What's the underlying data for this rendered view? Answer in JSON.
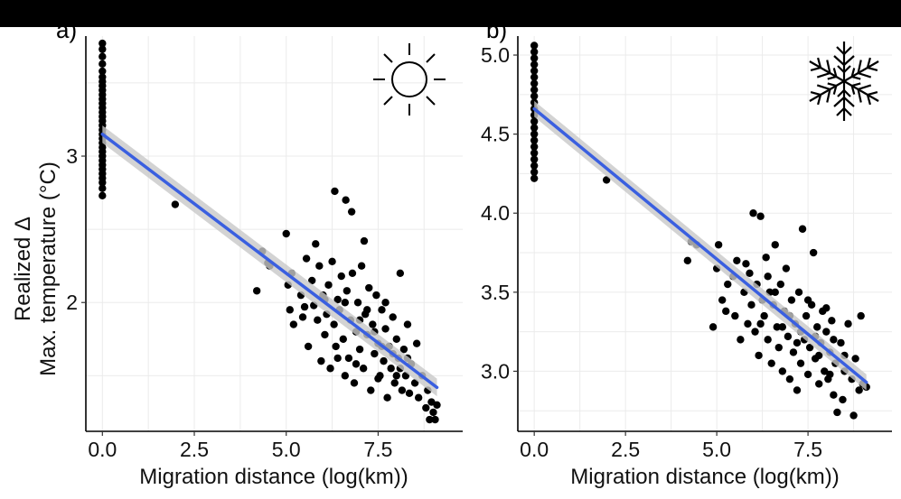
{
  "chart_data": [
    {
      "type": "scatter",
      "panel_label": "a)",
      "icon": "sun-icon",
      "xlabel": "Migration distance (log(km))",
      "ylabel_line1": "Realized Δ",
      "ylabel_line2": "Max. temperature (°C)",
      "xlim": [
        -0.45,
        9.8
      ],
      "ylim": [
        1.12,
        3.82
      ],
      "x_ticks": [
        0,
        2.5,
        5,
        7.5
      ],
      "x_tick_labels": [
        "0.0",
        "2.5",
        "5.0",
        "7.5"
      ],
      "y_ticks": [
        2,
        3
      ],
      "y_tick_labels": [
        "2",
        "3"
      ],
      "grid": true,
      "fit": {
        "x": [
          0,
          9.1
        ],
        "y": [
          3.15,
          1.42
        ],
        "ci_half_width": 0.06,
        "color": "#3a5fe0"
      },
      "point_color": "#000000",
      "points": [
        {
          "x": 0,
          "y": 2.73
        },
        {
          "x": 0,
          "y": 2.78
        },
        {
          "x": 0,
          "y": 2.82
        },
        {
          "x": 0,
          "y": 2.85
        },
        {
          "x": 0,
          "y": 2.88
        },
        {
          "x": 0,
          "y": 2.91
        },
        {
          "x": 0,
          "y": 2.94
        },
        {
          "x": 0,
          "y": 2.97
        },
        {
          "x": 0,
          "y": 3.0
        },
        {
          "x": 0,
          "y": 3.03
        },
        {
          "x": 0,
          "y": 3.06
        },
        {
          "x": 0,
          "y": 3.09
        },
        {
          "x": 0,
          "y": 3.12
        },
        {
          "x": 0,
          "y": 3.15
        },
        {
          "x": 0,
          "y": 3.18
        },
        {
          "x": 0,
          "y": 3.21
        },
        {
          "x": 0,
          "y": 3.24
        },
        {
          "x": 0,
          "y": 3.27
        },
        {
          "x": 0,
          "y": 3.3
        },
        {
          "x": 0,
          "y": 3.33
        },
        {
          "x": 0,
          "y": 3.36
        },
        {
          "x": 0,
          "y": 3.39
        },
        {
          "x": 0,
          "y": 3.42
        },
        {
          "x": 0,
          "y": 3.45
        },
        {
          "x": 0,
          "y": 3.48
        },
        {
          "x": 0,
          "y": 3.51
        },
        {
          "x": 0,
          "y": 3.54
        },
        {
          "x": 0,
          "y": 3.58
        },
        {
          "x": 0,
          "y": 3.63
        },
        {
          "x": 0,
          "y": 3.68
        },
        {
          "x": 0,
          "y": 3.73
        },
        {
          "x": 0,
          "y": 3.77
        },
        {
          "x": 1.98,
          "y": 2.67
        },
        {
          "x": 4.2,
          "y": 2.08
        },
        {
          "x": 4.35,
          "y": 2.35
        },
        {
          "x": 4.5,
          "y": 2.27
        },
        {
          "x": 4.55,
          "y": 2.25
        },
        {
          "x": 5.0,
          "y": 2.47
        },
        {
          "x": 5.05,
          "y": 2.12
        },
        {
          "x": 5.1,
          "y": 1.95
        },
        {
          "x": 5.15,
          "y": 2.2
        },
        {
          "x": 5.2,
          "y": 1.85
        },
        {
          "x": 5.4,
          "y": 2.05
        },
        {
          "x": 5.45,
          "y": 1.9
        },
        {
          "x": 5.55,
          "y": 2.3
        },
        {
          "x": 5.6,
          "y": 1.7
        },
        {
          "x": 5.7,
          "y": 2.15
        },
        {
          "x": 5.75,
          "y": 1.98
        },
        {
          "x": 5.8,
          "y": 2.4
        },
        {
          "x": 5.85,
          "y": 1.88
        },
        {
          "x": 5.9,
          "y": 2.25
        },
        {
          "x": 5.95,
          "y": 1.6
        },
        {
          "x": 6.0,
          "y": 2.05
        },
        {
          "x": 6.05,
          "y": 1.78
        },
        {
          "x": 6.1,
          "y": 1.92
        },
        {
          "x": 6.15,
          "y": 2.12
        },
        {
          "x": 6.2,
          "y": 1.55
        },
        {
          "x": 6.25,
          "y": 2.28
        },
        {
          "x": 6.3,
          "y": 1.85
        },
        {
          "x": 6.32,
          "y": 2.76
        },
        {
          "x": 6.35,
          "y": 1.7
        },
        {
          "x": 6.4,
          "y": 2.02
        },
        {
          "x": 6.45,
          "y": 1.95
        },
        {
          "x": 6.5,
          "y": 2.18
        },
        {
          "x": 6.55,
          "y": 1.75
        },
        {
          "x": 6.6,
          "y": 1.5
        },
        {
          "x": 6.62,
          "y": 2.7
        },
        {
          "x": 6.65,
          "y": 2.08
        },
        {
          "x": 6.7,
          "y": 1.62
        },
        {
          "x": 6.75,
          "y": 1.88
        },
        {
          "x": 6.78,
          "y": 2.62
        },
        {
          "x": 6.8,
          "y": 2.2
        },
        {
          "x": 6.85,
          "y": 1.45
        },
        {
          "x": 6.9,
          "y": 1.8
        },
        {
          "x": 6.95,
          "y": 2.0
        },
        {
          "x": 7.0,
          "y": 1.68
        },
        {
          "x": 7.05,
          "y": 2.25
        },
        {
          "x": 7.1,
          "y": 1.55
        },
        {
          "x": 7.12,
          "y": 2.42
        },
        {
          "x": 7.15,
          "y": 1.92
        },
        {
          "x": 7.2,
          "y": 1.78
        },
        {
          "x": 7.25,
          "y": 2.1
        },
        {
          "x": 7.3,
          "y": 1.4
        },
        {
          "x": 7.35,
          "y": 1.85
        },
        {
          "x": 7.4,
          "y": 1.65
        },
        {
          "x": 7.45,
          "y": 2.05
        },
        {
          "x": 7.5,
          "y": 1.72
        },
        {
          "x": 7.55,
          "y": 1.5
        },
        {
          "x": 7.6,
          "y": 1.95
        },
        {
          "x": 7.65,
          "y": 1.6
        },
        {
          "x": 7.7,
          "y": 1.82
        },
        {
          "x": 7.75,
          "y": 1.35
        },
        {
          "x": 7.8,
          "y": 1.7
        },
        {
          "x": 7.85,
          "y": 1.55
        },
        {
          "x": 7.9,
          "y": 1.9
        },
        {
          "x": 7.95,
          "y": 1.45
        },
        {
          "x": 8.0,
          "y": 1.75
        },
        {
          "x": 8.05,
          "y": 1.62
        },
        {
          "x": 8.1,
          "y": 2.2
        },
        {
          "x": 8.15,
          "y": 1.4
        },
        {
          "x": 8.2,
          "y": 1.68
        },
        {
          "x": 8.25,
          "y": 1.5
        },
        {
          "x": 8.3,
          "y": 1.85
        },
        {
          "x": 8.35,
          "y": 1.38
        },
        {
          "x": 8.4,
          "y": 1.58
        },
        {
          "x": 8.5,
          "y": 1.45
        },
        {
          "x": 8.55,
          "y": 1.72
        },
        {
          "x": 8.6,
          "y": 1.35
        },
        {
          "x": 8.7,
          "y": 1.5
        },
        {
          "x": 8.8,
          "y": 1.28
        },
        {
          "x": 8.85,
          "y": 1.4
        },
        {
          "x": 8.9,
          "y": 1.2
        },
        {
          "x": 8.95,
          "y": 1.32
        },
        {
          "x": 9.0,
          "y": 1.25
        },
        {
          "x": 9.05,
          "y": 1.2
        },
        {
          "x": 9.1,
          "y": 1.3
        },
        {
          "x": 5.5,
          "y": 1.97
        },
        {
          "x": 6.05,
          "y": 2.02
        },
        {
          "x": 6.4,
          "y": 1.62
        },
        {
          "x": 6.9,
          "y": 1.58
        },
        {
          "x": 7.2,
          "y": 1.95
        },
        {
          "x": 7.5,
          "y": 1.48
        },
        {
          "x": 7.7,
          "y": 2.0
        },
        {
          "x": 7.9,
          "y": 1.65
        },
        {
          "x": 8.1,
          "y": 1.55
        },
        {
          "x": 8.3,
          "y": 1.62
        },
        {
          "x": 6.6,
          "y": 2.0
        },
        {
          "x": 7.0,
          "y": 1.88
        },
        {
          "x": 7.4,
          "y": 1.8
        },
        {
          "x": 7.6,
          "y": 1.7
        },
        {
          "x": 8.0,
          "y": 1.5
        }
      ]
    },
    {
      "type": "scatter",
      "panel_label": "b)",
      "icon": "snowflake-icon",
      "xlabel": "Migration distance (log(km))",
      "ylabel_line1": "",
      "ylabel_line2": "",
      "xlim": [
        -0.45,
        9.8
      ],
      "ylim": [
        2.62,
        5.12
      ],
      "x_ticks": [
        0,
        2.5,
        5,
        7.5
      ],
      "x_tick_labels": [
        "0.0",
        "2.5",
        "5.0",
        "7.5"
      ],
      "y_ticks": [
        3.0,
        3.5,
        4.0,
        4.5,
        5.0
      ],
      "y_tick_labels": [
        "3.0",
        "3.5",
        "4.0",
        "4.5",
        "5.0"
      ],
      "grid": true,
      "fit": {
        "x": [
          0,
          9.1
        ],
        "y": [
          4.66,
          2.93
        ],
        "ci_half_width": 0.05,
        "color": "#3a5fe0"
      },
      "point_color": "#000000",
      "points": [
        {
          "x": 0,
          "y": 4.22
        },
        {
          "x": 0,
          "y": 4.26
        },
        {
          "x": 0,
          "y": 4.3
        },
        {
          "x": 0,
          "y": 4.34
        },
        {
          "x": 0,
          "y": 4.38
        },
        {
          "x": 0,
          "y": 4.42
        },
        {
          "x": 0,
          "y": 4.46
        },
        {
          "x": 0,
          "y": 4.5
        },
        {
          "x": 0,
          "y": 4.54
        },
        {
          "x": 0,
          "y": 4.58
        },
        {
          "x": 0,
          "y": 4.62
        },
        {
          "x": 0,
          "y": 4.66
        },
        {
          "x": 0,
          "y": 4.7
        },
        {
          "x": 0,
          "y": 4.74
        },
        {
          "x": 0,
          "y": 4.78
        },
        {
          "x": 0,
          "y": 4.82
        },
        {
          "x": 0,
          "y": 4.86
        },
        {
          "x": 0,
          "y": 4.9
        },
        {
          "x": 0,
          "y": 4.94
        },
        {
          "x": 0,
          "y": 4.98
        },
        {
          "x": 0,
          "y": 5.02
        },
        {
          "x": 0,
          "y": 5.06
        },
        {
          "x": 1.98,
          "y": 4.21
        },
        {
          "x": 4.2,
          "y": 3.7
        },
        {
          "x": 4.3,
          "y": 3.82
        },
        {
          "x": 4.45,
          "y": 3.8
        },
        {
          "x": 4.9,
          "y": 3.28
        },
        {
          "x": 5.0,
          "y": 3.65
        },
        {
          "x": 5.05,
          "y": 3.8
        },
        {
          "x": 5.15,
          "y": 3.45
        },
        {
          "x": 5.25,
          "y": 3.38
        },
        {
          "x": 5.3,
          "y": 3.55
        },
        {
          "x": 5.45,
          "y": 3.6
        },
        {
          "x": 5.5,
          "y": 3.35
        },
        {
          "x": 5.55,
          "y": 3.7
        },
        {
          "x": 5.65,
          "y": 3.2
        },
        {
          "x": 5.75,
          "y": 3.5
        },
        {
          "x": 5.85,
          "y": 3.3
        },
        {
          "x": 5.9,
          "y": 3.62
        },
        {
          "x": 5.95,
          "y": 3.42
        },
        {
          "x": 6.0,
          "y": 4.0
        },
        {
          "x": 6.05,
          "y": 3.25
        },
        {
          "x": 6.1,
          "y": 3.55
        },
        {
          "x": 6.15,
          "y": 3.1
        },
        {
          "x": 6.2,
          "y": 3.98
        },
        {
          "x": 6.25,
          "y": 3.45
        },
        {
          "x": 6.3,
          "y": 3.35
        },
        {
          "x": 6.35,
          "y": 3.72
        },
        {
          "x": 6.4,
          "y": 3.2
        },
        {
          "x": 6.45,
          "y": 3.5
        },
        {
          "x": 6.5,
          "y": 3.05
        },
        {
          "x": 6.55,
          "y": 3.42
        },
        {
          "x": 6.6,
          "y": 3.8
        },
        {
          "x": 6.65,
          "y": 3.28
        },
        {
          "x": 6.7,
          "y": 3.15
        },
        {
          "x": 6.75,
          "y": 3.55
        },
        {
          "x": 6.8,
          "y": 3.0
        },
        {
          "x": 6.85,
          "y": 3.38
        },
        {
          "x": 6.9,
          "y": 3.65
        },
        {
          "x": 6.95,
          "y": 3.22
        },
        {
          "x": 7.0,
          "y": 2.95
        },
        {
          "x": 7.05,
          "y": 3.45
        },
        {
          "x": 7.1,
          "y": 3.12
        },
        {
          "x": 7.15,
          "y": 3.3
        },
        {
          "x": 7.2,
          "y": 2.88
        },
        {
          "x": 7.25,
          "y": 3.5
        },
        {
          "x": 7.3,
          "y": 3.05
        },
        {
          "x": 7.35,
          "y": 3.9
        },
        {
          "x": 7.4,
          "y": 3.2
        },
        {
          "x": 7.45,
          "y": 3.35
        },
        {
          "x": 7.5,
          "y": 2.98
        },
        {
          "x": 7.55,
          "y": 3.15
        },
        {
          "x": 7.6,
          "y": 3.42
        },
        {
          "x": 7.65,
          "y": 3.75
        },
        {
          "x": 7.7,
          "y": 3.08
        },
        {
          "x": 7.75,
          "y": 3.28
        },
        {
          "x": 7.8,
          "y": 2.92
        },
        {
          "x": 7.85,
          "y": 3.18
        },
        {
          "x": 7.9,
          "y": 3.38
        },
        {
          "x": 7.95,
          "y": 3.0
        },
        {
          "x": 8.0,
          "y": 3.25
        },
        {
          "x": 8.05,
          "y": 2.95
        },
        {
          "x": 8.1,
          "y": 3.12
        },
        {
          "x": 8.15,
          "y": 3.32
        },
        {
          "x": 8.2,
          "y": 2.85
        },
        {
          "x": 8.25,
          "y": 3.05
        },
        {
          "x": 8.3,
          "y": 2.74
        },
        {
          "x": 8.4,
          "y": 3.18
        },
        {
          "x": 8.45,
          "y": 2.82
        },
        {
          "x": 8.5,
          "y": 3.0
        },
        {
          "x": 8.6,
          "y": 3.3
        },
        {
          "x": 8.7,
          "y": 2.95
        },
        {
          "x": 8.75,
          "y": 2.72
        },
        {
          "x": 8.8,
          "y": 3.08
        },
        {
          "x": 8.9,
          "y": 2.88
        },
        {
          "x": 8.95,
          "y": 3.35
        },
        {
          "x": 9.0,
          "y": 2.92
        },
        {
          "x": 9.1,
          "y": 2.9
        },
        {
          "x": 5.8,
          "y": 3.68
        },
        {
          "x": 6.2,
          "y": 3.3
        },
        {
          "x": 6.6,
          "y": 3.5
        },
        {
          "x": 7.0,
          "y": 3.35
        },
        {
          "x": 7.3,
          "y": 3.25
        },
        {
          "x": 7.5,
          "y": 3.45
        },
        {
          "x": 7.8,
          "y": 3.1
        },
        {
          "x": 8.0,
          "y": 3.4
        },
        {
          "x": 8.2,
          "y": 3.2
        },
        {
          "x": 8.5,
          "y": 3.1
        },
        {
          "x": 6.4,
          "y": 3.6
        },
        {
          "x": 6.8,
          "y": 3.28
        },
        {
          "x": 7.2,
          "y": 3.18
        },
        {
          "x": 7.7,
          "y": 3.22
        },
        {
          "x": 8.1,
          "y": 2.98
        }
      ]
    }
  ]
}
